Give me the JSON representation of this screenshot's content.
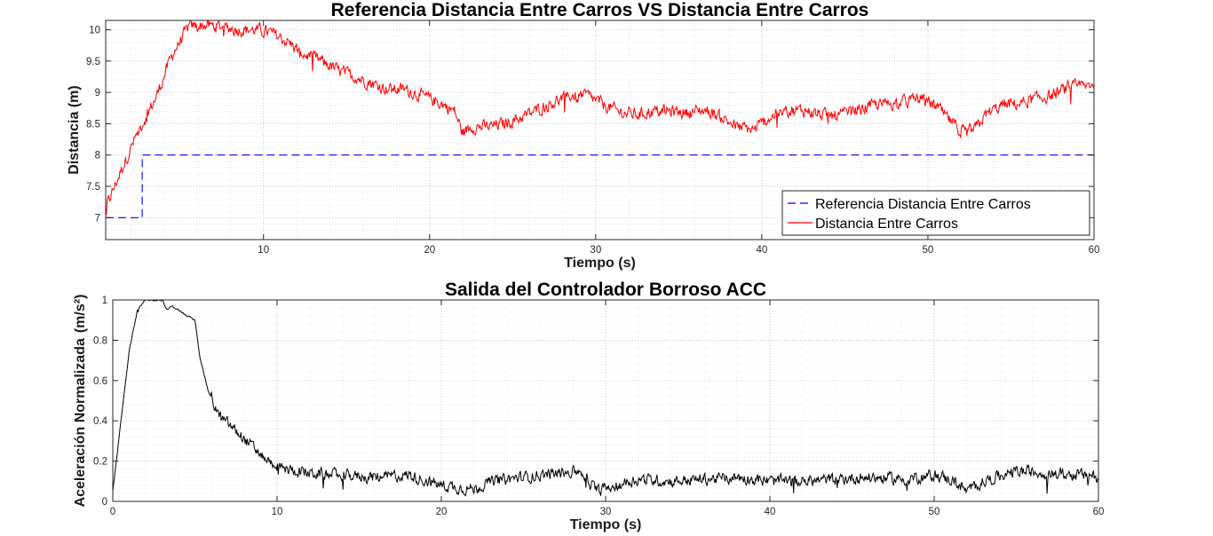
{
  "chart_data": [
    {
      "type": "line",
      "title": "Referencia Distancia Entre Carros VS Distancia Entre Carros",
      "xlabel": "Tiempo (s)",
      "ylabel": "Distancia (m)",
      "xlim": [
        0.5,
        60
      ],
      "ylim": [
        6.65,
        10.15
      ],
      "xticks": [
        10,
        20,
        30,
        40,
        50,
        60
      ],
      "yticks": [
        7,
        7.5,
        8,
        8.5,
        9,
        9.5,
        10
      ],
      "grid": true,
      "minor_grid": true,
      "legend_position": "bottom-right",
      "series": [
        {
          "name": "Referencia Distancia Entre Carros",
          "color": "#0000ff",
          "style": "dashed",
          "x": [
            0.5,
            2.7,
            2.7,
            60
          ],
          "y": [
            7,
            7,
            8,
            8
          ]
        },
        {
          "name": "Distancia Entre Carros",
          "color": "#ff0000",
          "style": "solid",
          "noise": 0.045,
          "x": [
            0.5,
            1.5,
            2.5,
            3.5,
            4.5,
            5.5,
            6.5,
            7.5,
            8.5,
            9.5,
            10.5,
            11.5,
            12.5,
            13.5,
            14.5,
            15.5,
            16.5,
            17.5,
            18.5,
            19.5,
            20.5,
            21.5,
            22,
            22.5,
            23.5,
            24.5,
            25.5,
            26.5,
            27.5,
            28.5,
            29.5,
            30.5,
            31.5,
            32.5,
            33.5,
            34.5,
            35.5,
            36.5,
            37.5,
            38.5,
            39.5,
            40.5,
            41.5,
            42.5,
            43.5,
            44.5,
            45.5,
            46.5,
            47.5,
            48.5,
            49.5,
            50.5,
            51.5,
            52.2,
            52.8,
            53.5,
            54.5,
            55.5,
            56.5,
            57.5,
            58.5,
            59.5,
            60
          ],
          "y": [
            7.15,
            7.8,
            8.4,
            8.9,
            9.6,
            10.05,
            10.07,
            10.05,
            10,
            10,
            9.95,
            9.8,
            9.6,
            9.5,
            9.35,
            9.25,
            9.15,
            9.05,
            9.05,
            8.95,
            8.85,
            8.7,
            8.35,
            8.45,
            8.45,
            8.5,
            8.6,
            8.72,
            8.85,
            8.95,
            8.95,
            8.8,
            8.68,
            8.65,
            8.7,
            8.7,
            8.68,
            8.72,
            8.62,
            8.45,
            8.4,
            8.6,
            8.7,
            8.72,
            8.65,
            8.62,
            8.7,
            8.78,
            8.82,
            8.85,
            8.9,
            8.78,
            8.5,
            8.35,
            8.4,
            8.65,
            8.8,
            8.82,
            8.9,
            8.95,
            9.08,
            9.1,
            9.15
          ]
        }
      ]
    },
    {
      "type": "line",
      "title": "Salida del Controlador Borroso ACC",
      "xlabel": "Tiempo (s)",
      "ylabel": "Aceleración Normalizada",
      "ylabel_unit": "(m/s²)",
      "xlim": [
        0,
        60
      ],
      "ylim": [
        0,
        1
      ],
      "xticks": [
        0,
        10,
        20,
        30,
        40,
        50,
        60
      ],
      "yticks": [
        0,
        0.2,
        0.4,
        0.6,
        0.8,
        1
      ],
      "grid": true,
      "minor_grid": true,
      "series": [
        {
          "color": "#000000",
          "style": "solid",
          "noise": 0.045,
          "x": [
            0,
            0.5,
            1,
            1.5,
            2,
            2.5,
            3,
            3.3,
            3.6,
            4,
            4.5,
            5,
            5.3,
            5.8,
            6.5,
            7.5,
            8.5,
            9.5,
            10.5,
            12,
            14,
            16,
            18,
            20,
            21,
            22,
            23,
            25,
            27,
            28.5,
            29.5,
            30.5,
            32,
            34,
            36,
            38,
            40,
            42,
            44,
            46,
            48,
            50,
            51,
            52,
            53,
            55,
            57,
            59,
            60
          ],
          "y": [
            0.05,
            0.4,
            0.75,
            0.95,
            1,
            1,
            1,
            0.95,
            0.97,
            0.95,
            0.92,
            0.9,
            0.72,
            0.55,
            0.42,
            0.35,
            0.27,
            0.2,
            0.16,
            0.14,
            0.13,
            0.12,
            0.13,
            0.08,
            0.07,
            0.06,
            0.1,
            0.12,
            0.14,
            0.15,
            0.05,
            0.08,
            0.11,
            0.1,
            0.11,
            0.12,
            0.1,
            0.1,
            0.11,
            0.12,
            0.11,
            0.13,
            0.11,
            0.05,
            0.1,
            0.15,
            0.14,
            0.13,
            0.12
          ]
        }
      ]
    }
  ]
}
